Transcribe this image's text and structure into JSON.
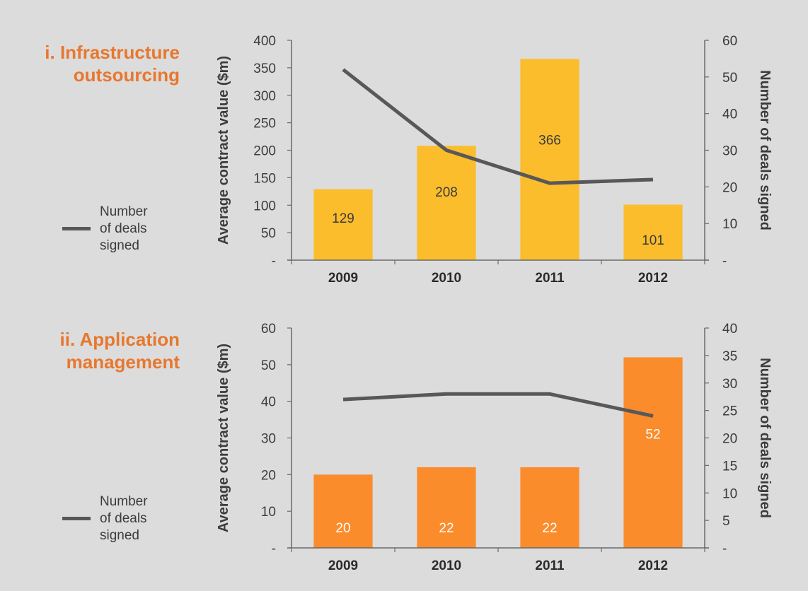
{
  "chart_data": [
    {
      "type": "bar",
      "title_lines": [
        "i. Infrastructure",
        "outsourcing"
      ],
      "categories": [
        "2009",
        "2010",
        "2011",
        "2012"
      ],
      "ylabel": "Average contract value ($m)",
      "y2label": "Number of deals signed",
      "ylim": [
        0,
        400
      ],
      "yticks": [
        "-",
        "50",
        "100",
        "150",
        "200",
        "250",
        "300",
        "350",
        "400"
      ],
      "y2lim": [
        0,
        60
      ],
      "y2ticks": [
        "-",
        "10",
        "20",
        "30",
        "40",
        "50",
        "60"
      ],
      "bar_color": "#fbbd2c",
      "line_color": "#58585a",
      "series": [
        {
          "type": "bar",
          "axis": "left",
          "values": [
            129,
            208,
            366,
            101
          ],
          "labels": [
            "129",
            "208",
            "366",
            "101"
          ]
        },
        {
          "type": "line",
          "axis": "right",
          "values": [
            52,
            30,
            21,
            22
          ]
        }
      ],
      "bar_label_pos": [
        "middle",
        "middle",
        "middle",
        "bottom"
      ],
      "bar_label_color": "#3c3c3c",
      "legend": {
        "lines": [
          "Number",
          "of deals",
          "signed"
        ],
        "position": "left"
      },
      "grid": false
    },
    {
      "type": "bar",
      "title_lines": [
        "ii. Application",
        "management"
      ],
      "categories": [
        "2009",
        "2010",
        "2011",
        "2012"
      ],
      "ylabel": "Average contract value ($m)",
      "y2label": "Number of deals signed",
      "ylim": [
        0,
        60
      ],
      "yticks": [
        "-",
        "10",
        "20",
        "30",
        "40",
        "50",
        "60"
      ],
      "y2lim": [
        0,
        40
      ],
      "y2ticks": [
        "-",
        "5",
        "10",
        "15",
        "20",
        "25",
        "30",
        "35",
        "40"
      ],
      "bar_color": "#fb8c2c",
      "line_color": "#58585a",
      "series": [
        {
          "type": "bar",
          "axis": "left",
          "values": [
            20,
            22,
            22,
            52
          ],
          "labels": [
            "20",
            "22",
            "22",
            "52"
          ]
        },
        {
          "type": "line",
          "axis": "right",
          "values": [
            27,
            28,
            28,
            24
          ]
        }
      ],
      "bar_label_pos": [
        "bottom",
        "bottom",
        "bottom",
        "middle"
      ],
      "bar_label_color": "#ffffff",
      "legend": {
        "lines": [
          "Number",
          "of deals",
          "signed"
        ],
        "position": "left"
      },
      "grid": false
    }
  ]
}
